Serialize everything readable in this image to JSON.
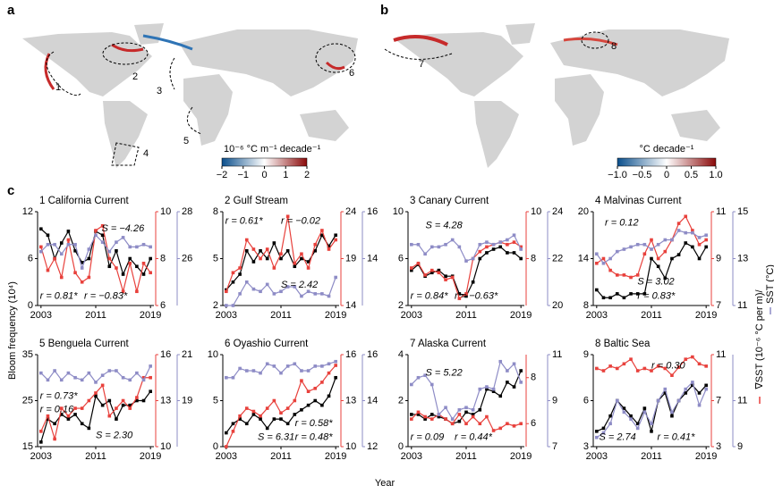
{
  "panels": {
    "a": "a",
    "b": "b",
    "c": "c"
  },
  "maps": [
    {
      "colorbar_label": "10⁻⁶ °C m⁻¹ decade⁻¹",
      "lim": [
        -2,
        2
      ],
      "ticks": [
        {
          "value": -2,
          "label": "−2"
        },
        {
          "value": -1,
          "label": "−1"
        },
        0,
        1,
        2
      ],
      "regions": [
        "1",
        "2",
        "3",
        "4",
        "5",
        "6"
      ]
    },
    {
      "colorbar_label": "°C decade⁻¹",
      "lim": [
        -1,
        1
      ],
      "ticks": [
        {
          "value": -1,
          "label": "−1.0"
        },
        {
          "value": -0.5,
          "label": "−0.5"
        },
        0,
        {
          "value": 0.5,
          "label": "0.5"
        },
        {
          "value": 1,
          "label": "1.0"
        }
      ],
      "regions": [
        "7",
        "8"
      ]
    }
  ],
  "y_label": "Bloom frequency (10⁴)",
  "x_label": "Year",
  "right_label": [
    "∇SST (10⁻⁶ °C per m)/",
    "SST (°C)"
  ],
  "chart_data": [
    {
      "type": "line",
      "title": "1 California Current",
      "x": [
        2003,
        2004,
        2005,
        2006,
        2007,
        2008,
        2009,
        2010,
        2011,
        2012,
        2013,
        2014,
        2015,
        2016,
        2017,
        2018,
        2019
      ],
      "xlim": [
        2002.5,
        2019.5
      ],
      "xticks": [
        2003,
        2011,
        2019
      ],
      "ylim": [
        0,
        12
      ],
      "yticks": [
        0,
        6,
        12
      ],
      "y2lim": [
        6,
        10
      ],
      "y2ticks": [
        6,
        8,
        10
      ],
      "y3lim": [
        24,
        28
      ],
      "y3ticks": [
        26,
        28
      ],
      "series": [
        {
          "color": "#000000",
          "axis": "y",
          "values": [
            9.8,
            9,
            6,
            8,
            9.5,
            7,
            5.5,
            6,
            9.5,
            9,
            5,
            7,
            4,
            6,
            5,
            4,
            6
          ]
        },
        {
          "color": "#e8413c",
          "axis": "y2",
          "values": [
            8.5,
            7.5,
            8,
            7.2,
            8.8,
            7.4,
            7,
            7.2,
            9.2,
            9.4,
            8,
            7.6,
            6.6,
            7.8,
            6.6,
            7.8,
            7.4
          ]
        },
        {
          "color": "#8e8cc6",
          "axis": "y3",
          "values": [
            26.3,
            26.6,
            26.6,
            26.2,
            26.6,
            26.6,
            25.6,
            26.4,
            27,
            26.7,
            26.3,
            26.7,
            26.9,
            26.5,
            26.5,
            26.6,
            26.5
          ]
        }
      ],
      "annotations": [
        {
          "text": "S = −4.26",
          "color": "#000000"
        },
        {
          "text": "r = 0.81*",
          "color": "#e8413c"
        },
        {
          "text": "r = −0.83*",
          "color": "#8e8cc6"
        }
      ]
    },
    {
      "type": "line",
      "title": "2 Gulf Stream",
      "x": [
        2003,
        2004,
        2005,
        2006,
        2007,
        2008,
        2009,
        2010,
        2011,
        2012,
        2013,
        2014,
        2015,
        2016,
        2017,
        2018,
        2019
      ],
      "xlim": [
        2002.5,
        2019.5
      ],
      "xticks": [
        2003,
        2011,
        2019
      ],
      "ylim": [
        2,
        8
      ],
      "yticks": [
        2,
        5,
        8
      ],
      "y2lim": [
        14,
        24
      ],
      "y2ticks": [
        14,
        19,
        24
      ],
      "y3lim": [
        12,
        16
      ],
      "y3ticks": [
        14,
        16
      ],
      "series": [
        {
          "color": "#000000",
          "axis": "y",
          "values": [
            3,
            3.5,
            4,
            5.5,
            4.8,
            5.5,
            5,
            6,
            5,
            5.5,
            4.5,
            5,
            4.8,
            5.5,
            6.5,
            5.8,
            6.5
          ]
        },
        {
          "color": "#e8413c",
          "axis": "y2",
          "values": [
            15.5,
            17.5,
            18,
            21,
            20,
            19,
            20,
            18,
            19.5,
            23.5,
            18.5,
            19.5,
            18,
            20.5,
            22,
            20,
            21
          ]
        },
        {
          "color": "#8e8cc6",
          "axis": "y3",
          "values": [
            12,
            12,
            12.5,
            13,
            12.7,
            12.6,
            12.9,
            12.5,
            12.6,
            12.8,
            12.8,
            12.4,
            12.6,
            12.5,
            12.5,
            12.4,
            13.2
          ]
        }
      ],
      "annotations": [
        {
          "text": "r = 0.61*",
          "color": "#e8413c"
        },
        {
          "text": "r = −0.02",
          "color": "#8e8cc6"
        },
        {
          "text": "S = 2.42",
          "color": "#000000"
        }
      ]
    },
    {
      "type": "line",
      "title": "3 Canary Current",
      "x": [
        2003,
        2004,
        2005,
        2006,
        2007,
        2008,
        2009,
        2010,
        2011,
        2012,
        2013,
        2014,
        2015,
        2016,
        2017,
        2018,
        2019
      ],
      "xlim": [
        2002.5,
        2019.5
      ],
      "xticks": [
        2003,
        2011,
        2019
      ],
      "ylim": [
        2,
        10
      ],
      "yticks": [
        2,
        6,
        10
      ],
      "y2lim": [
        6,
        10
      ],
      "y2ticks": [
        8,
        10
      ],
      "y3lim": [
        20,
        24
      ],
      "y3ticks": [
        20,
        22,
        24
      ],
      "series": [
        {
          "color": "#000000",
          "axis": "y",
          "values": [
            5,
            5.5,
            4.5,
            4.8,
            5,
            4.5,
            4.5,
            3,
            2.8,
            4,
            6,
            6.5,
            6.8,
            7,
            6.5,
            6.5,
            6
          ]
        },
        {
          "color": "#e8413c",
          "axis": "y2",
          "values": [
            7.6,
            7.8,
            7.3,
            7.5,
            7.4,
            7.1,
            7.2,
            6.3,
            6.5,
            8,
            8.3,
            8.5,
            8.6,
            8.7,
            8.6,
            8.7,
            8.5
          ]
        },
        {
          "color": "#8e8cc6",
          "axis": "y3",
          "values": [
            22.6,
            22.6,
            22.2,
            22.5,
            22.5,
            22.6,
            22.8,
            22.5,
            21.9,
            22,
            22.6,
            22.7,
            22.6,
            22.7,
            22.8,
            23,
            22.4
          ]
        }
      ],
      "annotations": [
        {
          "text": "S = 4.28",
          "color": "#000000"
        },
        {
          "text": "r = 0.84*",
          "color": "#e8413c"
        },
        {
          "text": "r = −0.63*",
          "color": "#8e8cc6"
        }
      ]
    },
    {
      "type": "line",
      "title": "4 Malvinas Current",
      "x": [
        2003,
        2004,
        2005,
        2006,
        2007,
        2008,
        2009,
        2010,
        2011,
        2012,
        2013,
        2014,
        2015,
        2016,
        2017,
        2018,
        2019
      ],
      "xlim": [
        2002.5,
        2019.5
      ],
      "xticks": [
        2003,
        2011,
        2019
      ],
      "ylim": [
        8,
        20
      ],
      "yticks": [
        8,
        14,
        20
      ],
      "y2lim": [
        7,
        11
      ],
      "y2ticks": [
        7,
        9,
        11
      ],
      "y3lim": [
        11,
        15
      ],
      "y3ticks": [
        11,
        13,
        15
      ],
      "series": [
        {
          "color": "#000000",
          "axis": "y",
          "values": [
            10,
            9,
            9,
            9.5,
            9,
            9.5,
            9.5,
            9.5,
            14,
            13,
            11.5,
            14,
            14.5,
            16,
            15.5,
            14,
            15.5
          ]
        },
        {
          "color": "#e8413c",
          "axis": "y2",
          "values": [
            8.8,
            9,
            8.5,
            8.3,
            8.3,
            8.2,
            8.3,
            9.2,
            9.8,
            9,
            9.3,
            9.8,
            10.5,
            10.8,
            10.2,
            9.6,
            9.8
          ]
        },
        {
          "color": "#8e8cc6",
          "axis": "y3",
          "values": [
            13.2,
            12.8,
            13,
            13.3,
            13.4,
            13.5,
            13.6,
            13.6,
            13.4,
            13.6,
            13.8,
            13.8,
            14.2,
            14.1,
            14.1,
            13.9,
            14
          ]
        }
      ],
      "annotations": [
        {
          "text": "r = 0.12",
          "color": "#8e8cc6"
        },
        {
          "text": "S = 3.02",
          "color": "#000000"
        },
        {
          "text": "r = 0.83*",
          "color": "#e8413c"
        }
      ]
    },
    {
      "type": "line",
      "title": "5 Benguela Current",
      "x": [
        2003,
        2004,
        2005,
        2006,
        2007,
        2008,
        2009,
        2010,
        2011,
        2012,
        2013,
        2014,
        2015,
        2016,
        2017,
        2018,
        2019
      ],
      "xlim": [
        2002.5,
        2019.5
      ],
      "xticks": [
        2003,
        2011,
        2019
      ],
      "ylim": [
        15,
        35
      ],
      "yticks": [
        15,
        25,
        35
      ],
      "y2lim": [
        10,
        16
      ],
      "y2ticks": [
        10,
        13,
        16
      ],
      "y3lim": [
        17,
        21
      ],
      "y3ticks": [
        19,
        21
      ],
      "series": [
        {
          "color": "#000000",
          "axis": "y",
          "values": [
            16,
            21,
            20,
            22,
            21,
            22,
            20,
            19,
            26,
            24,
            25,
            21,
            24,
            24,
            25,
            25,
            27
          ]
        },
        {
          "color": "#e8413c",
          "axis": "y2",
          "values": [
            11,
            12,
            10.5,
            12.5,
            12,
            12.5,
            12.5,
            13,
            13.5,
            14,
            12,
            12.5,
            13,
            12.5,
            13.2,
            14.5,
            14.5
          ]
        },
        {
          "color": "#8e8cc6",
          "axis": "y3",
          "values": [
            20.2,
            19.9,
            20.3,
            19.9,
            20.2,
            20,
            19.9,
            20.2,
            19.8,
            20.1,
            20.3,
            20.3,
            20,
            19.9,
            20.2,
            19.9,
            20.5
          ]
        }
      ],
      "annotations": [
        {
          "text": "r = 0.73*",
          "color": "#e8413c"
        },
        {
          "text": "r = 0.16",
          "color": "#8e8cc6"
        },
        {
          "text": "S = 2.30",
          "color": "#000000"
        }
      ]
    },
    {
      "type": "line",
      "title": "6 Oyashio Current",
      "x": [
        2003,
        2004,
        2005,
        2006,
        2007,
        2008,
        2009,
        2010,
        2011,
        2012,
        2013,
        2014,
        2015,
        2016,
        2017,
        2018,
        2019
      ],
      "xlim": [
        2002.5,
        2019.5
      ],
      "xticks": [
        2003,
        2011,
        2019
      ],
      "ylim": [
        0,
        10
      ],
      "yticks": [
        0,
        5,
        10
      ],
      "y2lim": [
        10,
        16
      ],
      "y2ticks": [
        10,
        13,
        16
      ],
      "y3lim": [
        12,
        16
      ],
      "y3ticks": [
        12,
        14,
        16
      ],
      "series": [
        {
          "color": "#000000",
          "axis": "y",
          "values": [
            1.5,
            2.5,
            3,
            2.5,
            3.5,
            3,
            2,
            3,
            3,
            2.5,
            3.5,
            4,
            4.5,
            5,
            4.5,
            5.5,
            7.5
          ]
        },
        {
          "color": "#e8413c",
          "axis": "y2",
          "values": [
            10,
            11,
            12,
            12.5,
            12.3,
            12,
            12.5,
            13,
            12.2,
            12.5,
            13,
            14.3,
            13.6,
            13.8,
            14.2,
            14.8,
            15.3
          ]
        },
        {
          "color": "#8e8cc6",
          "axis": "y3",
          "values": [
            15,
            15,
            15.4,
            15.3,
            15.3,
            15.2,
            15.6,
            15.5,
            15.2,
            15.5,
            15.6,
            15.3,
            15.3,
            15.5,
            15.5,
            15.6,
            15.7
          ]
        }
      ],
      "annotations": [
        {
          "text": "S = 6.31",
          "color": "#000000"
        },
        {
          "text": "r = 0.58*",
          "color": "#e8413c"
        },
        {
          "text": "r = 0.48*",
          "color": "#8e8cc6"
        }
      ]
    },
    {
      "type": "line",
      "title": "7 Alaska Current",
      "x": [
        2003,
        2004,
        2005,
        2006,
        2007,
        2008,
        2009,
        2010,
        2011,
        2012,
        2013,
        2014,
        2015,
        2016,
        2017,
        2018,
        2019
      ],
      "xlim": [
        2002.5,
        2019.5
      ],
      "xticks": [
        2003,
        2011,
        2019
      ],
      "ylim": [
        0,
        4
      ],
      "yticks": [
        0,
        2,
        4
      ],
      "y2lim": [
        5,
        9
      ],
      "y2ticks": [
        6,
        8
      ],
      "y3lim": [
        7,
        11
      ],
      "y3ticks": [
        7,
        9,
        11
      ],
      "series": [
        {
          "color": "#000000",
          "axis": "y",
          "values": [
            1.4,
            1.4,
            1.2,
            1.4,
            1.3,
            1.2,
            1,
            1.1,
            1.5,
            1.4,
            1.6,
            2.5,
            2.4,
            2.2,
            2.8,
            2.6,
            3.3
          ]
        },
        {
          "color": "#e8413c",
          "axis": "y2",
          "values": [
            6.2,
            6.5,
            6.3,
            6.2,
            6.4,
            6.2,
            6,
            6.4,
            6,
            6.3,
            6,
            6.3,
            5.7,
            5.8,
            6,
            5.9,
            6
          ]
        },
        {
          "color": "#8e8cc6",
          "axis": "y3",
          "values": [
            9.7,
            10,
            10.1,
            9.7,
            8.4,
            8.7,
            8.2,
            8.6,
            8.7,
            8.6,
            9.5,
            9.6,
            9.5,
            10.7,
            10.3,
            10.6,
            9.8
          ]
        }
      ],
      "annotations": [
        {
          "text": "S = 5.22",
          "color": "#000000"
        },
        {
          "text": "r = 0.09",
          "color": "#e8413c"
        },
        {
          "text": "r = 0.44*",
          "color": "#8e8cc6"
        }
      ]
    },
    {
      "type": "line",
      "title": "8 Baltic Sea",
      "x": [
        2003,
        2004,
        2005,
        2006,
        2007,
        2008,
        2009,
        2010,
        2011,
        2012,
        2013,
        2014,
        2015,
        2016,
        2017,
        2018,
        2019
      ],
      "xlim": [
        2002.5,
        2019.5
      ],
      "xticks": [
        2003,
        2011,
        2019
      ],
      "ylim": [
        3,
        9
      ],
      "yticks": [
        3,
        6,
        9
      ],
      "y2lim": [
        3,
        11
      ],
      "y2ticks": [
        3,
        7,
        11
      ],
      "y3lim": [
        9,
        13
      ],
      "y3ticks": [
        9,
        11
      ],
      "series": [
        {
          "color": "#000000",
          "axis": "y",
          "values": [
            4,
            4.2,
            5,
            6,
            5.5,
            5,
            4.5,
            5.5,
            4,
            6,
            6.5,
            5,
            6,
            6.5,
            7,
            6.5,
            7
          ]
        },
        {
          "color": "#e8413c",
          "axis": "y2",
          "values": [
            9.8,
            9.6,
            10,
            9.8,
            10.2,
            10.6,
            9.6,
            9.8,
            9.6,
            10,
            9.8,
            9.2,
            9.9,
            10.6,
            10.8,
            10.2,
            10
          ]
        },
        {
          "color": "#8e8cc6",
          "axis": "y3",
          "values": [
            9.4,
            9.6,
            10,
            11,
            10.5,
            10.2,
            9.8,
            10.5,
            10,
            11,
            11.5,
            10.5,
            11,
            11.5,
            11.8,
            10.8,
            11.5
          ]
        }
      ],
      "annotations": [
        {
          "text": "r = 0.30",
          "color": "#e8413c"
        },
        {
          "text": "S = 2.74",
          "color": "#000000"
        },
        {
          "text": "r = 0.41*",
          "color": "#8e8cc6"
        }
      ]
    }
  ]
}
